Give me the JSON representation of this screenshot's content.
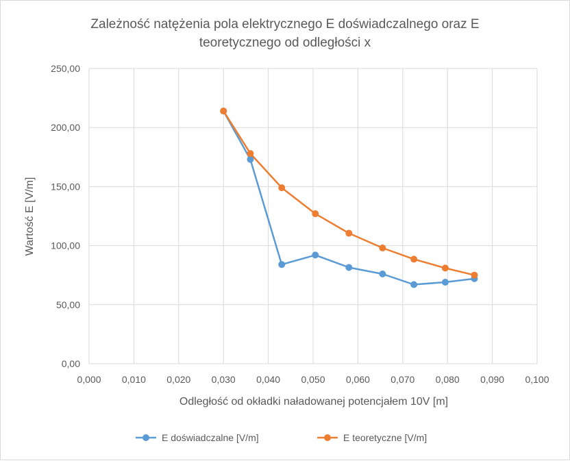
{
  "chart_data": {
    "type": "line",
    "title_line1": "Zależność natężenia pola elektrycznego E doświadczalnego oraz E",
    "title_line2": "teoretycznego od odległości x",
    "xlabel": "Odległość od okładki naładowanej potencjałem 10V [m]",
    "ylabel": "Wartość E [V/m]",
    "xlim": [
      0,
      0.1
    ],
    "ylim": [
      0,
      250
    ],
    "x_ticks": [
      "0,000",
      "0,010",
      "0,020",
      "0,030",
      "0,040",
      "0,050",
      "0,060",
      "0,070",
      "0,080",
      "0,090",
      "0,100"
    ],
    "y_ticks": [
      "0,00",
      "50,00",
      "100,00",
      "150,00",
      "200,00",
      "250,00"
    ],
    "grid": true,
    "legend_position": "bottom",
    "series": [
      {
        "name": "E doświadczalne [V/m]",
        "color": "#5B9BD5",
        "x": [
          0.03,
          0.036,
          0.043,
          0.0505,
          0.058,
          0.0655,
          0.0725,
          0.0795,
          0.086
        ],
        "y": [
          214,
          173,
          84,
          92,
          81.5,
          76,
          67,
          69,
          72
        ]
      },
      {
        "name": "E teoretyczne [V/m]",
        "color": "#ED7D31",
        "x": [
          0.03,
          0.036,
          0.043,
          0.0505,
          0.058,
          0.0655,
          0.0725,
          0.0795,
          0.086
        ],
        "y": [
          214,
          178,
          149,
          127,
          110.5,
          98,
          88.5,
          81,
          75
        ]
      }
    ]
  }
}
